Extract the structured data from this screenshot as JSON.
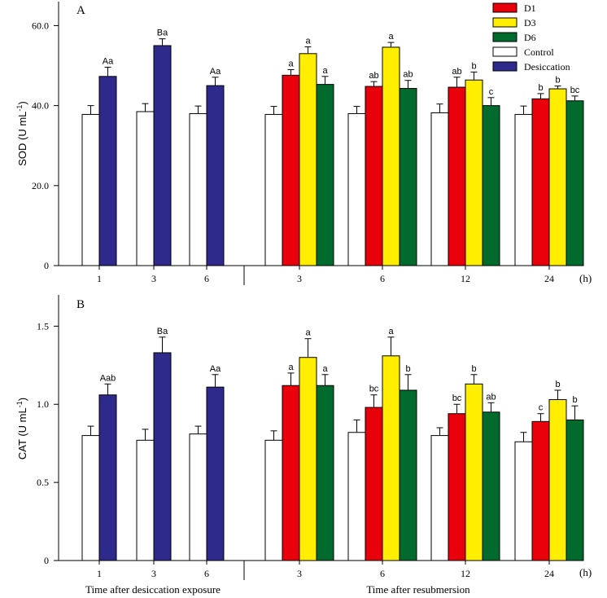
{
  "chart_data": [
    {
      "type": "bar",
      "panel_label": "A",
      "ylabel": "SOD (U mL",
      "ylabel_sup": "-1",
      "ylabel_close": ")",
      "ylim": [
        0,
        66
      ],
      "yticks": [
        0,
        20,
        40,
        60
      ],
      "ytick_labels": [
        "0",
        "20.0",
        "40.0",
        "60.0"
      ],
      "unit_label": "(h)",
      "desiccation_groups": [
        {
          "label": "1",
          "control": 37.8,
          "control_err": 2.2,
          "desiccation": 47.3,
          "desiccation_err": 2.3,
          "letter": "Aa"
        },
        {
          "label": "3",
          "control": 38.5,
          "control_err": 2.0,
          "desiccation": 55.0,
          "desiccation_err": 1.7,
          "letter": "Ba"
        },
        {
          "label": "6",
          "control": 38.0,
          "control_err": 1.9,
          "desiccation": 45.0,
          "desiccation_err": 2.1,
          "letter": "Aa"
        }
      ],
      "resubmersion_groups": [
        {
          "label": "3",
          "control": 37.8,
          "control_err": 2.0,
          "D1": 47.6,
          "D1_err": 1.4,
          "D1_letter": "a",
          "D3": 53.0,
          "D3_err": 1.7,
          "D3_letter": "a",
          "D6": 45.3,
          "D6_err": 2.0,
          "D6_letter": "a"
        },
        {
          "label": "6",
          "control": 38.0,
          "control_err": 1.8,
          "D1": 44.8,
          "D1_err": 1.2,
          "D1_letter": "ab",
          "D3": 54.6,
          "D3_err": 1.2,
          "D3_letter": "a",
          "D6": 44.3,
          "D6_err": 2.0,
          "D6_letter": "ab"
        },
        {
          "label": "12",
          "control": 38.2,
          "control_err": 2.2,
          "D1": 44.6,
          "D1_err": 2.5,
          "D1_letter": "ab",
          "D3": 46.4,
          "D3_err": 2.0,
          "D3_letter": "b",
          "D6": 40.0,
          "D6_err": 2.0,
          "D6_letter": "c"
        },
        {
          "label": "24",
          "control": 37.8,
          "control_err": 2.1,
          "D1": 41.7,
          "D1_err": 1.3,
          "D1_letter": "b",
          "D3": 44.2,
          "D3_err": 0.7,
          "D3_letter": "b",
          "D6": 41.2,
          "D6_err": 1.2,
          "D6_letter": "bc"
        }
      ]
    },
    {
      "type": "bar",
      "panel_label": "B",
      "ylabel": "CAT (U mL",
      "ylabel_sup": "-1",
      "ylabel_close": ")",
      "ylim": [
        0,
        1.7
      ],
      "yticks": [
        0,
        0.5,
        1.0,
        1.5
      ],
      "ytick_labels": [
        "0",
        "0.5",
        "1.0",
        "1.5"
      ],
      "unit_label": "(h)",
      "xlabel_left": "Time after desiccation exposure",
      "xlabel_right": "Time after resubmersion",
      "desiccation_groups": [
        {
          "label": "1",
          "control": 0.8,
          "control_err": 0.06,
          "desiccation": 1.06,
          "desiccation_err": 0.07,
          "letter": "Aab"
        },
        {
          "label": "3",
          "control": 0.77,
          "control_err": 0.07,
          "desiccation": 1.33,
          "desiccation_err": 0.1,
          "letter": "Ba"
        },
        {
          "label": "6",
          "control": 0.81,
          "control_err": 0.05,
          "desiccation": 1.11,
          "desiccation_err": 0.08,
          "letter": "Aa"
        }
      ],
      "resubmersion_groups": [
        {
          "label": "3",
          "control": 0.77,
          "control_err": 0.06,
          "D1": 1.12,
          "D1_err": 0.08,
          "D1_letter": "a",
          "D3": 1.3,
          "D3_err": 0.12,
          "D3_letter": "a",
          "D6": 1.12,
          "D6_err": 0.07,
          "D6_letter": "a"
        },
        {
          "label": "6",
          "control": 0.82,
          "control_err": 0.08,
          "D1": 0.98,
          "D1_err": 0.08,
          "D1_letter": "bc",
          "D3": 1.31,
          "D3_err": 0.12,
          "D3_letter": "a",
          "D6": 1.09,
          "D6_err": 0.1,
          "D6_letter": "b"
        },
        {
          "label": "12",
          "control": 0.8,
          "control_err": 0.05,
          "D1": 0.94,
          "D1_err": 0.06,
          "D1_letter": "bc",
          "D3": 1.13,
          "D3_err": 0.06,
          "D3_letter": "b",
          "D6": 0.95,
          "D6_err": 0.06,
          "D6_letter": "ab"
        },
        {
          "label": "24",
          "control": 0.76,
          "control_err": 0.06,
          "D1": 0.89,
          "D1_err": 0.05,
          "D1_letter": "c",
          "D3": 1.03,
          "D3_err": 0.06,
          "D3_letter": "b",
          "D6": 0.9,
          "D6_err": 0.09,
          "D6_letter": "b"
        }
      ]
    }
  ],
  "legend": {
    "placement": "top-right",
    "items": [
      {
        "key": "D1",
        "label": "D1",
        "color": "#e8000b"
      },
      {
        "key": "D3",
        "label": "D3",
        "color": "#ffee00"
      },
      {
        "key": "D6",
        "label": "D6",
        "color": "#006b2d"
      },
      {
        "key": "control",
        "label": "Control",
        "color": "#ffffff"
      },
      {
        "key": "desiccation",
        "label": "Desiccation",
        "color": "#2e2a8c"
      }
    ]
  },
  "colors": {
    "control": "#ffffff",
    "desiccation": "#2e2a8c",
    "D1": "#e8000b",
    "D3": "#ffee00",
    "D6": "#006b2d"
  }
}
